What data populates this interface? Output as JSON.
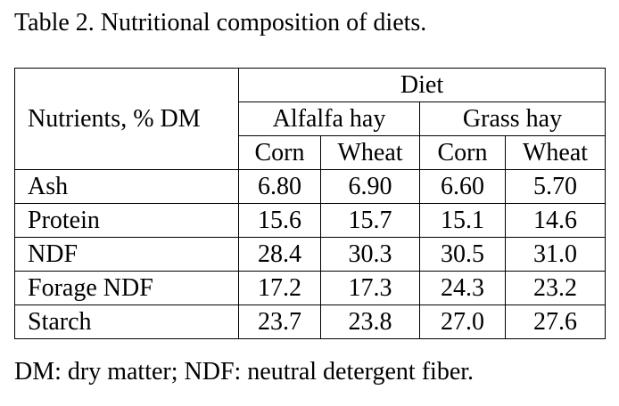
{
  "caption": "Table 2. Nutritional composition of diets.",
  "table": {
    "row_header": "Nutrients, % DM",
    "group_header": "Diet",
    "forages": [
      "Alfalfa hay",
      "Grass hay"
    ],
    "grains": [
      "Corn",
      "Wheat",
      "Corn",
      "Wheat"
    ],
    "rows": [
      {
        "name": "Ash",
        "values": [
          "6.80",
          "6.90",
          "6.60",
          "5.70"
        ]
      },
      {
        "name": "Protein",
        "values": [
          "15.6",
          "15.7",
          "15.1",
          "14.6"
        ]
      },
      {
        "name": "NDF",
        "values": [
          "28.4",
          "30.3",
          "30.5",
          "31.0"
        ]
      },
      {
        "name": "Forage NDF",
        "values": [
          "17.2",
          "17.3",
          "24.3",
          "23.2"
        ]
      },
      {
        "name": "Starch",
        "values": [
          "23.7",
          "23.8",
          "27.0",
          "27.6"
        ]
      }
    ]
  },
  "footnote": "DM: dry matter; NDF: neutral detergent fiber."
}
